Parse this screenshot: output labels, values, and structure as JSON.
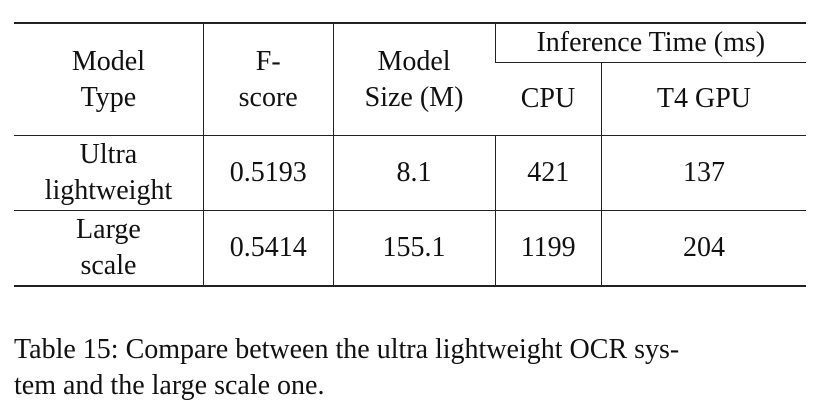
{
  "table": {
    "header": {
      "model_type": [
        "Model",
        "Type"
      ],
      "f_score": [
        "F-",
        "score"
      ],
      "model_size": [
        "Model",
        "Size (M)"
      ],
      "inference_time": "Inference Time (ms)",
      "cpu": "CPU",
      "gpu": "T4 GPU"
    },
    "rows": [
      {
        "model_type": [
          "Ultra",
          "lightweight"
        ],
        "f_score": "0.5193",
        "model_size": "8.1",
        "cpu": "421",
        "gpu": "137"
      },
      {
        "model_type": [
          "Large",
          "scale"
        ],
        "f_score": "0.5414",
        "model_size": "155.1",
        "cpu": "1199",
        "gpu": "204"
      }
    ]
  },
  "caption": {
    "line1": "Table 15: Compare between the ultra lightweight OCR sys-",
    "line2": "tem and the large scale one."
  }
}
